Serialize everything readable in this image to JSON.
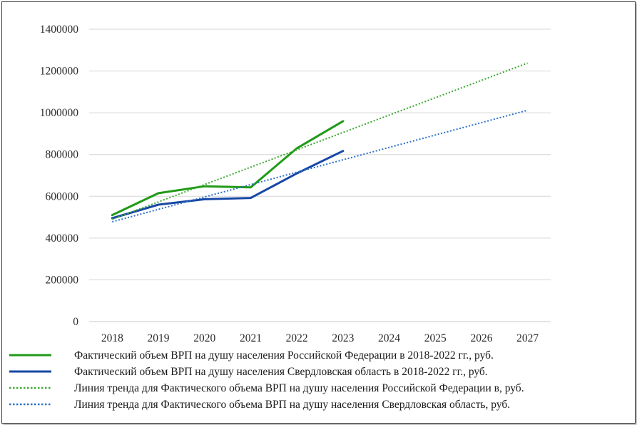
{
  "chart_data": {
    "type": "line",
    "title": "",
    "xlabel": "",
    "ylabel": "",
    "x": [
      "2018",
      "2019",
      "2020",
      "2021",
      "2022",
      "2023",
      "2024",
      "2025",
      "2026",
      "2027"
    ],
    "yticks": [
      "0",
      "200000",
      "400000",
      "600000",
      "800000",
      "1000000",
      "1200000",
      "1400000"
    ],
    "ylim": [
      0,
      1400000
    ],
    "grid": "horizontal",
    "legend_position": "bottom",
    "series": [
      {
        "name": "Фактический объем ВРП на душу населения Российской Федерации в 2018-2022 гг., руб.",
        "style": "solid",
        "color": "#1f9a16",
        "x": [
          "2018",
          "2019",
          "2020",
          "2021",
          "2022",
          "2023"
        ],
        "values": [
          510000,
          615000,
          648000,
          643000,
          830000,
          960000
        ]
      },
      {
        "name": "Фактический объем ВРП на душу населения Свердловская область в 2018-2022 гг., руб.",
        "style": "solid",
        "color": "#1747a6",
        "x": [
          "2018",
          "2019",
          "2020",
          "2021",
          "2022",
          "2023"
        ],
        "values": [
          495000,
          560000,
          586000,
          592000,
          710000,
          817000
        ]
      },
      {
        "name": "Линия тренда для Фактического объема ВРП на душу населения Российской Федерации в, руб.",
        "style": "dotted",
        "color": "#3aa82e",
        "x": [
          "2018",
          "2027"
        ],
        "values": [
          490000,
          1238000
        ]
      },
      {
        "name": "Линия тренда для Фактического объема ВРП на душу населения Свердловская область, руб.",
        "style": "dotted",
        "color": "#2a6fc9",
        "x": [
          "2018",
          "2027"
        ],
        "values": [
          478000,
          1012000
        ]
      }
    ]
  }
}
